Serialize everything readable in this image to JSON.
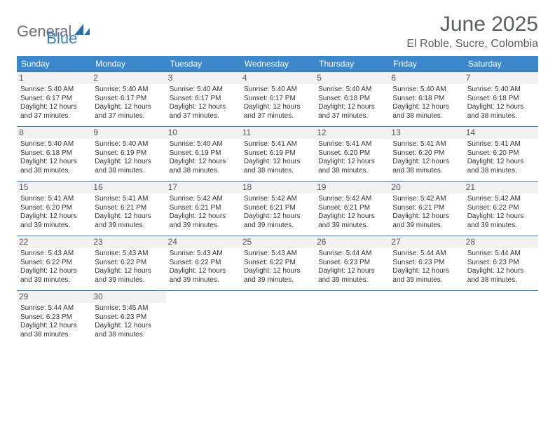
{
  "brand": {
    "part1": "General",
    "part2": "Blue"
  },
  "title": "June 2025",
  "location": "El Roble, Sucre, Colombia",
  "colors": {
    "header_bg": "#3a87c9",
    "header_text": "#ffffff",
    "rule": "#3a7fbf",
    "title_text": "#595d63",
    "logo_gray": "#6b7076",
    "logo_blue": "#3a7fbf",
    "daynum_bg": "#f2f2f2"
  },
  "weekdays": [
    "Sunday",
    "Monday",
    "Tuesday",
    "Wednesday",
    "Thursday",
    "Friday",
    "Saturday"
  ],
  "days": [
    {
      "n": "1",
      "sr": "5:40 AM",
      "ss": "6:17 PM",
      "dl": "12 hours and 37 minutes."
    },
    {
      "n": "2",
      "sr": "5:40 AM",
      "ss": "6:17 PM",
      "dl": "12 hours and 37 minutes."
    },
    {
      "n": "3",
      "sr": "5:40 AM",
      "ss": "6:17 PM",
      "dl": "12 hours and 37 minutes."
    },
    {
      "n": "4",
      "sr": "5:40 AM",
      "ss": "6:17 PM",
      "dl": "12 hours and 37 minutes."
    },
    {
      "n": "5",
      "sr": "5:40 AM",
      "ss": "6:18 PM",
      "dl": "12 hours and 37 minutes."
    },
    {
      "n": "6",
      "sr": "5:40 AM",
      "ss": "6:18 PM",
      "dl": "12 hours and 38 minutes."
    },
    {
      "n": "7",
      "sr": "5:40 AM",
      "ss": "6:18 PM",
      "dl": "12 hours and 38 minutes."
    },
    {
      "n": "8",
      "sr": "5:40 AM",
      "ss": "6:18 PM",
      "dl": "12 hours and 38 minutes."
    },
    {
      "n": "9",
      "sr": "5:40 AM",
      "ss": "6:19 PM",
      "dl": "12 hours and 38 minutes."
    },
    {
      "n": "10",
      "sr": "5:40 AM",
      "ss": "6:19 PM",
      "dl": "12 hours and 38 minutes."
    },
    {
      "n": "11",
      "sr": "5:41 AM",
      "ss": "6:19 PM",
      "dl": "12 hours and 38 minutes."
    },
    {
      "n": "12",
      "sr": "5:41 AM",
      "ss": "6:20 PM",
      "dl": "12 hours and 38 minutes."
    },
    {
      "n": "13",
      "sr": "5:41 AM",
      "ss": "6:20 PM",
      "dl": "12 hours and 38 minutes."
    },
    {
      "n": "14",
      "sr": "5:41 AM",
      "ss": "6:20 PM",
      "dl": "12 hours and 38 minutes."
    },
    {
      "n": "15",
      "sr": "5:41 AM",
      "ss": "6:20 PM",
      "dl": "12 hours and 39 minutes."
    },
    {
      "n": "16",
      "sr": "5:41 AM",
      "ss": "6:21 PM",
      "dl": "12 hours and 39 minutes."
    },
    {
      "n": "17",
      "sr": "5:42 AM",
      "ss": "6:21 PM",
      "dl": "12 hours and 39 minutes."
    },
    {
      "n": "18",
      "sr": "5:42 AM",
      "ss": "6:21 PM",
      "dl": "12 hours and 39 minutes."
    },
    {
      "n": "19",
      "sr": "5:42 AM",
      "ss": "6:21 PM",
      "dl": "12 hours and 39 minutes."
    },
    {
      "n": "20",
      "sr": "5:42 AM",
      "ss": "6:21 PM",
      "dl": "12 hours and 39 minutes."
    },
    {
      "n": "21",
      "sr": "5:42 AM",
      "ss": "6:22 PM",
      "dl": "12 hours and 39 minutes."
    },
    {
      "n": "22",
      "sr": "5:43 AM",
      "ss": "6:22 PM",
      "dl": "12 hours and 39 minutes."
    },
    {
      "n": "23",
      "sr": "5:43 AM",
      "ss": "6:22 PM",
      "dl": "12 hours and 39 minutes."
    },
    {
      "n": "24",
      "sr": "5:43 AM",
      "ss": "6:22 PM",
      "dl": "12 hours and 39 minutes."
    },
    {
      "n": "25",
      "sr": "5:43 AM",
      "ss": "6:22 PM",
      "dl": "12 hours and 39 minutes."
    },
    {
      "n": "26",
      "sr": "5:44 AM",
      "ss": "6:23 PM",
      "dl": "12 hours and 39 minutes."
    },
    {
      "n": "27",
      "sr": "5:44 AM",
      "ss": "6:23 PM",
      "dl": "12 hours and 39 minutes."
    },
    {
      "n": "28",
      "sr": "5:44 AM",
      "ss": "6:23 PM",
      "dl": "12 hours and 38 minutes."
    },
    {
      "n": "29",
      "sr": "5:44 AM",
      "ss": "6:23 PM",
      "dl": "12 hours and 38 minutes."
    },
    {
      "n": "30",
      "sr": "5:45 AM",
      "ss": "6:23 PM",
      "dl": "12 hours and 38 minutes."
    }
  ],
  "labels": {
    "sunrise": "Sunrise:",
    "sunset": "Sunset:",
    "daylight": "Daylight:"
  }
}
